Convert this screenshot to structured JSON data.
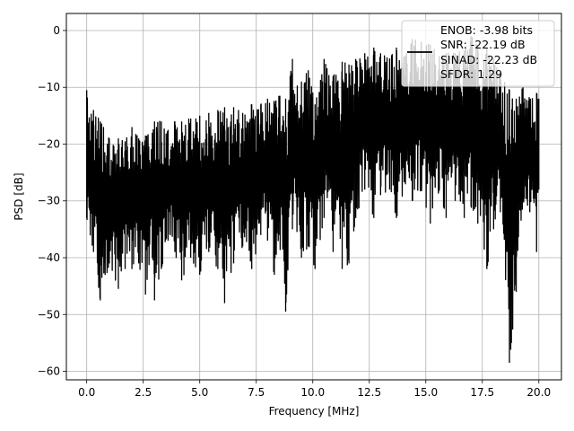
{
  "chart_data": {
    "type": "line",
    "xlabel": "Frequency [MHz]",
    "ylabel": "PSD [dB]",
    "xlim": [
      -0.9,
      21.0
    ],
    "ylim": [
      -61.5,
      3.0
    ],
    "x_ticks": [
      {
        "value": 0.0,
        "label": "0.0"
      },
      {
        "value": 2.5,
        "label": "2.5"
      },
      {
        "value": 5.0,
        "label": "5.0"
      },
      {
        "value": 7.5,
        "label": "7.5"
      },
      {
        "value": 10.0,
        "label": "10.0"
      },
      {
        "value": 12.5,
        "label": "12.5"
      },
      {
        "value": 15.0,
        "label": "15.0"
      },
      {
        "value": 17.5,
        "label": "17.5"
      },
      {
        "value": 20.0,
        "label": "20.0"
      }
    ],
    "y_ticks": [
      {
        "value": 0,
        "label": "0"
      },
      {
        "value": -10,
        "label": "−10"
      },
      {
        "value": -20,
        "label": "−20"
      },
      {
        "value": -30,
        "label": "−30"
      },
      {
        "value": -40,
        "label": "−40"
      },
      {
        "value": -50,
        "label": "−50"
      },
      {
        "value": -60,
        "label": "−60"
      }
    ],
    "grid": true,
    "legend": {
      "position": "top-right",
      "entries": [
        "ENOB: -3.98 bits",
        "SNR: -22.19 dB",
        "SINAD: -22.23 dB",
        "SFDR: 1.29"
      ]
    },
    "series": [
      {
        "color": "#000000",
        "envelope": [
          [
            0.0,
            -33,
            -10.5
          ],
          [
            0.3,
            -39,
            -14
          ],
          [
            0.6,
            -47.5,
            -16
          ],
          [
            1.0,
            -41,
            -19
          ],
          [
            1.4,
            -45.5,
            -19
          ],
          [
            1.7,
            -42,
            -19.5
          ],
          [
            2.0,
            -42,
            -17
          ],
          [
            2.3,
            -41,
            -19
          ],
          [
            2.6,
            -46.5,
            -18.5
          ],
          [
            2.9,
            -40,
            -18
          ],
          [
            3.0,
            -47.5,
            -16
          ],
          [
            3.3,
            -42,
            -16
          ],
          [
            3.6,
            -37,
            -17.5
          ],
          [
            3.9,
            -39,
            -16
          ],
          [
            4.2,
            -44,
            -16
          ],
          [
            4.6,
            -40,
            -15.5
          ],
          [
            5.0,
            -43,
            -15
          ],
          [
            5.4,
            -39,
            -14.5
          ],
          [
            5.8,
            -42,
            -14
          ],
          [
            6.1,
            -48,
            -13.5
          ],
          [
            6.5,
            -41,
            -13.5
          ],
          [
            6.9,
            -38,
            -14.5
          ],
          [
            7.3,
            -42,
            -13
          ],
          [
            7.7,
            -36,
            -13
          ],
          [
            8.0,
            -37,
            -12
          ],
          [
            8.3,
            -43,
            -12.5
          ],
          [
            8.5,
            -36,
            -11.5
          ],
          [
            8.8,
            -49.5,
            -12
          ],
          [
            9.1,
            -35,
            -5
          ],
          [
            9.5,
            -40,
            -9
          ],
          [
            9.8,
            -38,
            -7
          ],
          [
            10.1,
            -42,
            -13
          ],
          [
            10.5,
            -33,
            -5
          ],
          [
            10.9,
            -39,
            -8
          ],
          [
            11.3,
            -42,
            -5.5
          ],
          [
            11.6,
            -41,
            -6
          ],
          [
            11.9,
            -33,
            -5
          ],
          [
            12.3,
            -28,
            -4
          ],
          [
            12.7,
            -33,
            -3
          ],
          [
            13.0,
            -29,
            -4
          ],
          [
            13.4,
            -28,
            -5
          ],
          [
            13.7,
            -33,
            -3
          ],
          [
            14.1,
            -27,
            -4.5
          ],
          [
            14.4,
            -30,
            -1.5
          ],
          [
            14.8,
            -28,
            -2
          ],
          [
            15.2,
            -34,
            -2.5
          ],
          [
            15.6,
            -28,
            -4.5
          ],
          [
            15.9,
            -33,
            -4
          ],
          [
            16.3,
            -30,
            -4
          ],
          [
            16.7,
            -33,
            -3.5
          ],
          [
            17.0,
            -31,
            -1
          ],
          [
            17.3,
            -34,
            -2.5
          ],
          [
            17.7,
            -42,
            -3
          ],
          [
            18.0,
            -35,
            -5
          ],
          [
            18.3,
            -32,
            -8
          ],
          [
            18.7,
            -58.5,
            -10.5
          ],
          [
            19.0,
            -46,
            -12
          ],
          [
            19.3,
            -30,
            -10
          ],
          [
            19.6,
            -32,
            -12
          ],
          [
            19.9,
            -39,
            -11
          ],
          [
            20.0,
            -28,
            -12
          ]
        ]
      }
    ]
  }
}
